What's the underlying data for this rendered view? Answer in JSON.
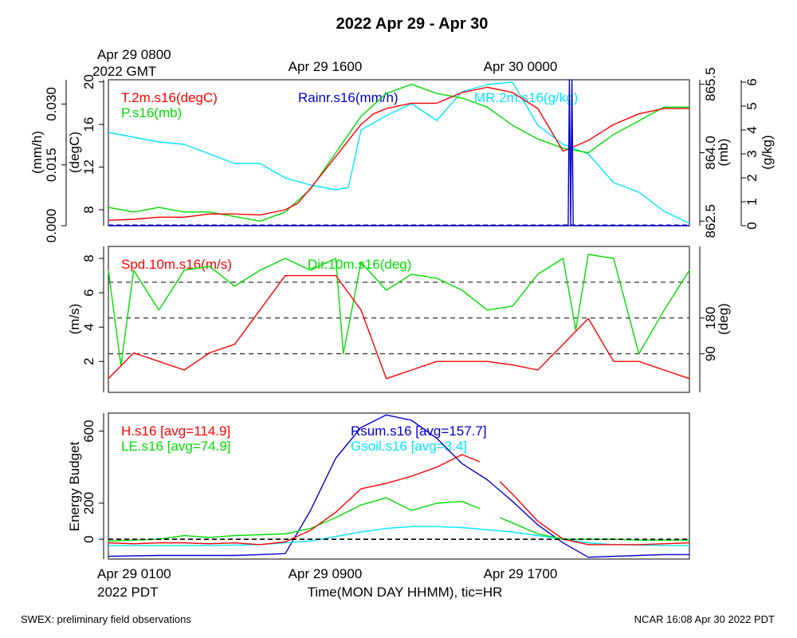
{
  "title": "2022 Apr 29 - Apr 30",
  "top_axis": {
    "start_label": [
      "Apr 29 0800",
      "2022 GMT"
    ],
    "tick_labels": [
      "Apr 29 1600",
      "Apr 30 0000"
    ]
  },
  "bottom_axis": {
    "start_label": [
      "Apr 29 0100",
      "2022 PDT"
    ],
    "tick_labels": [
      "Apr 29 0900",
      "Apr 29 1700"
    ],
    "xlabel": "Time(MON DAY HHMM), tic=HR"
  },
  "footer": {
    "left": "SWEX: preliminary field observations",
    "right": "NCAR 16:08 Apr 30 2022 PDT"
  },
  "colors": {
    "red": "#ff0000",
    "green": "#00dd00",
    "blue": "#0000cc",
    "cyan": "#00e5ff",
    "black": "#000000"
  },
  "chart_data": [
    {
      "type": "line",
      "panel": "thermo",
      "x_unit": "hours since Apr 29 0100 PDT",
      "xlim": [
        0,
        23
      ],
      "axes": {
        "rain": {
          "label": "(mm/h)",
          "ylim": [
            0,
            0.036
          ],
          "ticks": [
            "0.000",
            "0.015",
            "0.030"
          ]
        },
        "temp": {
          "label": "(degC)",
          "ylim": [
            6.5,
            20.2
          ],
          "ticks": [
            "8",
            "12",
            "16",
            "20"
          ]
        },
        "pres": {
          "label": "(mb)",
          "ylim": [
            862.4,
            865.6
          ],
          "ticks": [
            "862.5",
            "864.0",
            "865.5"
          ]
        },
        "mr": {
          "label": "(g/kg)",
          "ylim": [
            0,
            6.1
          ],
          "ticks": [
            "0",
            "1",
            "2",
            "3",
            "4",
            "5",
            "6"
          ]
        }
      },
      "series": [
        {
          "name": "T.2m.s16(degC)",
          "color": "red",
          "axis": "temp",
          "x": [
            0,
            1,
            2,
            3,
            4,
            5,
            6,
            7,
            7.5,
            8,
            9,
            10,
            10.5,
            11,
            12,
            13,
            14,
            15,
            16,
            17,
            18,
            19,
            20,
            21,
            22,
            23
          ],
          "values": [
            7.0,
            7.1,
            7.3,
            7.3,
            7.6,
            7.6,
            7.5,
            8.0,
            8.6,
            10.0,
            13.0,
            16.0,
            17.0,
            17.5,
            18.0,
            18.0,
            19.0,
            19.5,
            19.0,
            17.5,
            13.5,
            14.5,
            16.0,
            17.0,
            17.5,
            17.5
          ]
        },
        {
          "name": "P.s16(mb)",
          "color": "green",
          "axis": "pres",
          "x": [
            0,
            1,
            2,
            3,
            4,
            5,
            6,
            7,
            8,
            9,
            10,
            11,
            12,
            13,
            14,
            15,
            16,
            17,
            18,
            19,
            20,
            21,
            22,
            23
          ],
          "values": [
            862.8,
            862.7,
            862.8,
            862.7,
            862.7,
            862.6,
            862.5,
            862.7,
            863.2,
            864.0,
            864.8,
            865.3,
            865.5,
            865.3,
            865.2,
            865.0,
            864.6,
            864.3,
            864.1,
            864.0,
            864.4,
            864.7,
            865.0,
            865.0
          ]
        },
        {
          "name": "Rainr.s16(mm/h)",
          "color": "blue",
          "axis": "rain",
          "x": [
            0,
            18.2,
            18.25,
            18.3,
            18.35,
            18.4,
            23
          ],
          "values": [
            0,
            0,
            0.036,
            0,
            0.036,
            0,
            0
          ]
        },
        {
          "name": "MR.2m.s16(g/kg)",
          "color": "cyan",
          "axis": "mr",
          "x": [
            0,
            1,
            2,
            3,
            4,
            5,
            6,
            7,
            8,
            9,
            9.5,
            10,
            11,
            12,
            13,
            14,
            15,
            16,
            17,
            18,
            19,
            20,
            21,
            22,
            23
          ],
          "values": [
            3.9,
            3.7,
            3.5,
            3.4,
            3.0,
            2.6,
            2.6,
            2.0,
            1.7,
            1.5,
            1.6,
            4.0,
            4.6,
            5.1,
            4.4,
            5.6,
            5.9,
            6.0,
            4.2,
            3.4,
            3.0,
            1.8,
            1.4,
            0.6,
            0.1
          ]
        }
      ]
    },
    {
      "type": "line",
      "panel": "wind",
      "x_unit": "hours since Apr 29 0100 PDT",
      "xlim": [
        0,
        23
      ],
      "axes": {
        "spd": {
          "label": "(m/s)",
          "ylim": [
            0.2,
            8.7
          ],
          "ticks": [
            "2",
            "4",
            "6",
            "8"
          ]
        },
        "dir": {
          "label": "(deg)",
          "ylim": [
            -7,
            360
          ],
          "ticks": [
            "90",
            "180"
          ],
          "reference_lines": [
            90,
            180,
            270
          ]
        }
      },
      "series": [
        {
          "name": "Spd.10m.s16(m/s)",
          "color": "red",
          "axis": "spd",
          "x": [
            0,
            1,
            2,
            3,
            4,
            5,
            6,
            7,
            8,
            9,
            10,
            11,
            12,
            13,
            14,
            15,
            16,
            17,
            18,
            19,
            20,
            21,
            22,
            23
          ],
          "values": [
            1.0,
            2.5,
            2.0,
            1.5,
            2.5,
            3.0,
            5.0,
            7.0,
            7.0,
            7.0,
            5.0,
            1.0,
            1.5,
            2.0,
            2.0,
            2.0,
            1.8,
            1.5,
            3.0,
            4.5,
            2.0,
            2.0,
            1.5,
            1.0
          ]
        },
        {
          "name": "Dir.10m.s16(deg)",
          "color": "green",
          "axis": "dir",
          "x": [
            0,
            0.5,
            1,
            2,
            3,
            4,
            5,
            6,
            7,
            8,
            9,
            9.3,
            10,
            11,
            12,
            13,
            14,
            15,
            16,
            17,
            18,
            18.5,
            19,
            20,
            21,
            22,
            23
          ],
          "values": [
            300,
            60,
            300,
            200,
            300,
            310,
            260,
            300,
            330,
            300,
            330,
            90,
            320,
            250,
            290,
            280,
            250,
            200,
            210,
            290,
            330,
            150,
            340,
            330,
            90,
            200,
            300
          ]
        }
      ]
    },
    {
      "type": "line",
      "panel": "energy",
      "x_unit": "hours since Apr 29 0100 PDT",
      "xlim": [
        0,
        23
      ],
      "ylabel": "Energy Budget",
      "ylim": [
        -110,
        700
      ],
      "yticks": [
        0,
        200,
        600
      ],
      "reference_lines": [
        0
      ],
      "series": [
        {
          "name": "H.s16 [avg=114.9]",
          "color": "red",
          "segments": [
            {
              "x": [
                0,
                1,
                2,
                3,
                4,
                5,
                6,
                7,
                8,
                9,
                10,
                11,
                12,
                13,
                14,
                14.7
              ],
              "values": [
                -20,
                -25,
                -20,
                -20,
                -25,
                -20,
                -30,
                -15,
                50,
                150,
                280,
                310,
                350,
                400,
                470,
                430
              ]
            },
            {
              "x": [
                15.5,
                16,
                17,
                18,
                19,
                20,
                21,
                22,
                23
              ],
              "values": [
                320,
                250,
                100,
                0,
                -30,
                -30,
                -30,
                -25,
                -20
              ]
            }
          ]
        },
        {
          "name": "LE.s16 [avg=74.9]",
          "color": "green",
          "segments": [
            {
              "x": [
                0,
                1,
                2,
                3,
                4,
                5,
                6,
                7,
                8,
                9,
                10,
                11,
                12,
                13,
                14,
                14.7
              ],
              "values": [
                -10,
                -5,
                0,
                20,
                10,
                20,
                25,
                30,
                60,
                120,
                190,
                230,
                160,
                200,
                210,
                170
              ]
            },
            {
              "x": [
                15.5,
                16,
                17,
                18,
                19,
                20,
                21,
                22,
                23
              ],
              "values": [
                120,
                90,
                30,
                0,
                0,
                0,
                -5,
                -5,
                -5
              ]
            }
          ]
        },
        {
          "name": "Rsum.s16 [avg=157.7]",
          "color": "blue",
          "x": [
            0,
            1,
            2,
            3,
            4,
            5,
            6,
            7,
            8,
            9,
            10,
            11,
            12,
            13,
            14,
            15,
            16,
            17,
            18,
            19,
            20,
            21,
            22,
            23
          ],
          "values": [
            -95,
            -92,
            -90,
            -90,
            -90,
            -90,
            -85,
            -80,
            160,
            450,
            620,
            690,
            660,
            560,
            420,
            330,
            210,
            80,
            -20,
            -100,
            -95,
            -90,
            -85,
            -85
          ]
        },
        {
          "name": "Gsoil.s16 [avg=3.4]",
          "color": "cyan",
          "x": [
            0,
            2,
            4,
            6,
            8,
            10,
            11,
            12,
            13,
            14,
            16,
            17,
            18,
            19,
            20,
            22,
            23
          ],
          "values": [
            -35,
            -35,
            -35,
            -30,
            -10,
            40,
            60,
            70,
            70,
            65,
            40,
            20,
            0,
            -20,
            -30,
            -35,
            -35
          ]
        }
      ]
    }
  ]
}
